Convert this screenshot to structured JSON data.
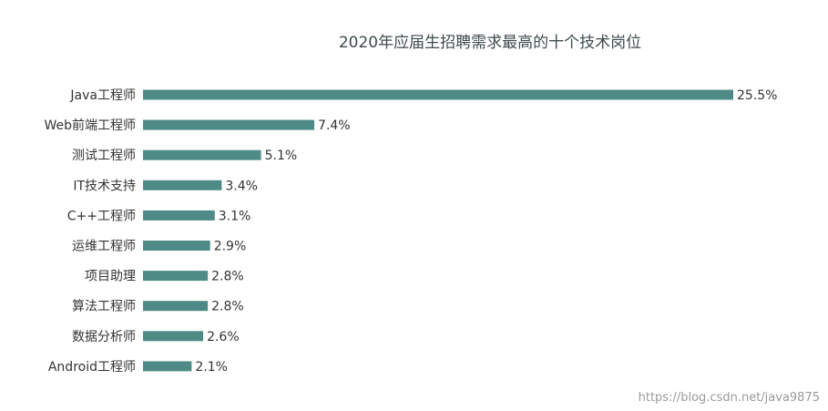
{
  "chart_data": {
    "type": "bar",
    "orientation": "horizontal",
    "title": "2020年应届生招聘需求最高的十个技术岗位",
    "categories": [
      "Java工程师",
      "Web前端工程师",
      "测试工程师",
      "IT技术支持",
      "C++工程师",
      "运维工程师",
      "项目助理",
      "算法工程师",
      "数据分析师",
      "Android工程师"
    ],
    "values": [
      25.5,
      7.4,
      5.1,
      3.4,
      3.1,
      2.9,
      2.8,
      2.8,
      2.6,
      2.1
    ],
    "value_labels": [
      "25.5%",
      "7.4%",
      "5.1%",
      "3.4%",
      "3.1%",
      "2.9%",
      "2.8%",
      "2.8%",
      "2.6%",
      "2.1%"
    ],
    "xlim": [
      0,
      25.5
    ],
    "grid": false,
    "bar_color": "#4f8b86"
  },
  "watermark": "https://blog.csdn.net/java9875"
}
